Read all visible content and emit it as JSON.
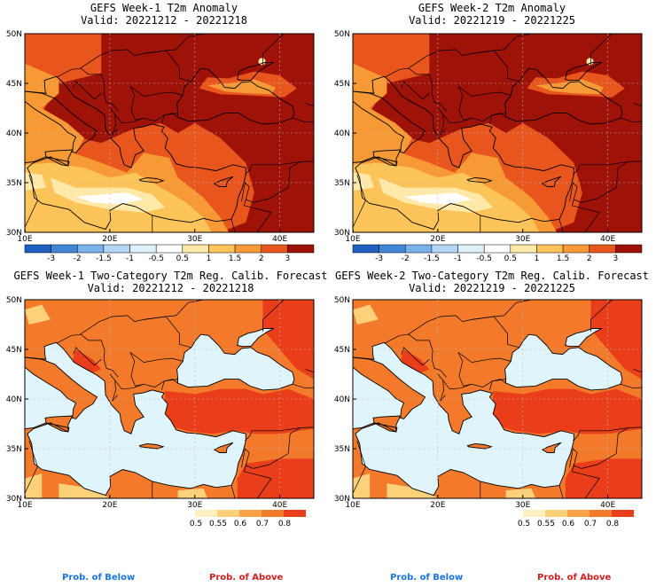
{
  "panels": [
    {
      "id": "p1",
      "title_line1": "GEFS Week-1 T2m Anomaly",
      "title_line2": "Valid: 20221212 - 20221218",
      "kind": "anomaly"
    },
    {
      "id": "p2",
      "title_line1": "GEFS Week-2 T2m Anomaly",
      "title_line2": "Valid: 20221219 - 20221225",
      "kind": "anomaly"
    },
    {
      "id": "p3",
      "title_line1": "GEFS Week-1 Two-Category T2m Reg. Calib. Forecast",
      "title_line2": "Valid: 20221212 - 20221218",
      "kind": "prob"
    },
    {
      "id": "p4",
      "title_line1": "GEFS Week-2 Two-Category T2m Reg. Calib. Forecast",
      "title_line2": "Valid: 20221219 - 20221225",
      "kind": "prob"
    }
  ],
  "axes": {
    "lat_ticks": [
      "30N",
      "35N",
      "40N",
      "45N",
      "50N"
    ],
    "lon_ticks": [
      "10E",
      "20E",
      "30E",
      "40E"
    ],
    "lon_range": [
      10,
      44
    ],
    "lat_range": [
      30,
      50
    ]
  },
  "anomaly_colorbar": {
    "labels": [
      "-3",
      "-2",
      "-1.5",
      "-1",
      "-0.5",
      "0.5",
      "1",
      "1.5",
      "2",
      "3"
    ],
    "colors": [
      "#1f5fbf",
      "#3f86d6",
      "#79b1ea",
      "#b4d6f6",
      "#e0f0fb",
      "#ffffff",
      "#ffe9a8",
      "#fdc45a",
      "#f79a35",
      "#e8561e",
      "#9e1208"
    ]
  },
  "prob_colorbar": {
    "labels": [
      "0.5",
      "0.55",
      "0.6",
      "0.7",
      "0.8"
    ],
    "colors": [
      "#fff0c0",
      "#fdd07a",
      "#f9a247",
      "#f37a2b",
      "#ea3d1a"
    ]
  },
  "bottom_labels": {
    "below": "Prob. of Below",
    "above": "Prob. of Above",
    "below_color": "#1a74e6",
    "above_color": "#d21e1e"
  },
  "colors": {
    "sea": "#e0f4fb",
    "land_prob": "#f37a2b",
    "land_prob_strong": "#ea3d1a",
    "land_prob_weak": "#fdd07a",
    "anom_dark": "#9e1208",
    "anom_red": "#e8561e",
    "anom_orange": "#f79a35",
    "anom_yellow": "#fdc45a",
    "anom_pale": "#ffe9a8",
    "anom_white": "#ffffff"
  }
}
